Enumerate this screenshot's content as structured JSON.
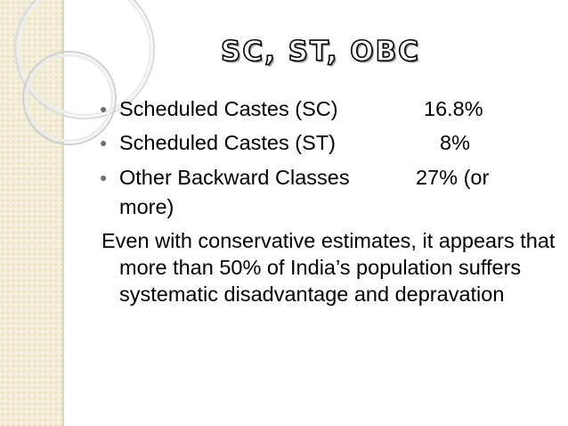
{
  "slide": {
    "title": "SC, ST, OBC",
    "bullets": [
      {
        "label": "Scheduled Castes (SC)",
        "value": "16.8%"
      },
      {
        "label": "Scheduled Castes (ST)",
        "value": "8%"
      },
      {
        "label": "Other Backward Classes",
        "value": "27% (or",
        "continuation": "more)"
      }
    ],
    "paragraph": "Even with conservative estimates, it appears that more than 50% of India’s population suffers systematic disadvantage and depravation"
  },
  "colors": {
    "band": "#f3ecd6",
    "bullet": "#6e6e6e",
    "text": "#000000"
  }
}
